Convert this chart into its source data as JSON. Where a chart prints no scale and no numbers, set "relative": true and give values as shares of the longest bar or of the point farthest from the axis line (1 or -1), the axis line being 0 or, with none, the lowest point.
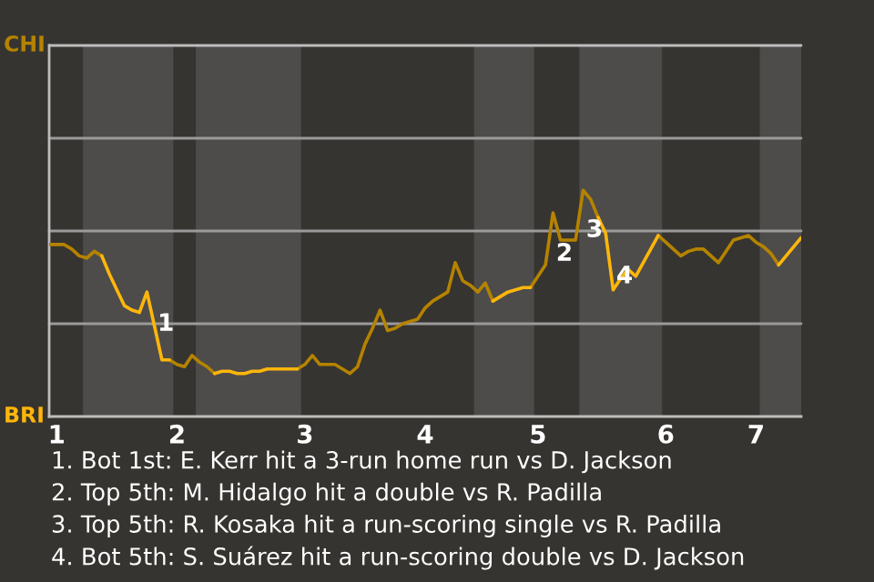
{
  "chart_data": {
    "type": "line",
    "relative": true,
    "categories": [
      null,
      "1",
      null,
      null,
      null,
      null,
      null,
      null,
      null,
      null,
      null,
      null,
      null,
      null,
      null,
      null,
      null,
      "2",
      null,
      null,
      null,
      null,
      null,
      null,
      null,
      null,
      null,
      null,
      null,
      null,
      null,
      null,
      null,
      null,
      "3",
      null,
      null,
      null,
      null,
      null,
      null,
      null,
      null,
      null,
      null,
      null,
      null,
      null,
      null,
      null,
      "4",
      null,
      null,
      null,
      null,
      null,
      null,
      null,
      null,
      null,
      null,
      null,
      null,
      null,
      null,
      "5",
      null,
      null,
      null,
      null,
      null,
      null,
      null,
      null,
      null,
      null,
      null,
      null,
      null,
      null,
      null,
      null,
      "6",
      null,
      null,
      null,
      null,
      null,
      null,
      null,
      null,
      null,
      null,
      null,
      "7",
      null,
      null,
      null,
      null,
      null,
      null
    ],
    "series": [
      {
        "color": "#b58300",
        "values": [
          0.76,
          0.76,
          0.76,
          0.74,
          0.71,
          0.7,
          0.73,
          0.71,
          null,
          null,
          null,
          null,
          null,
          null,
          null,
          null,
          0.25,
          0.23,
          0.22,
          0.27,
          0.24,
          0.22,
          0.19,
          null,
          null,
          null,
          null,
          null,
          null,
          null,
          null,
          null,
          null,
          0.21,
          0.23,
          0.27,
          0.23,
          0.23,
          0.23,
          0.21,
          0.19,
          0.22,
          0.32,
          0.39,
          0.47,
          0.38,
          0.39,
          0.41,
          0.42,
          0.43,
          0.48,
          0.51,
          0.53,
          0.55,
          0.68,
          0.6,
          0.58,
          0.55,
          0.59,
          0.51,
          null,
          null,
          null,
          null,
          0.57,
          0.62,
          0.67,
          0.9,
          0.78,
          0.78,
          0.78,
          1,
          0.96,
          0.88,
          null,
          null,
          null,
          null,
          null,
          null,
          null,
          0.8,
          0.77,
          0.74,
          0.71,
          0.73,
          0.74,
          0.74,
          0.71,
          0.68,
          0.73,
          0.78,
          0.79,
          0.8,
          0.77,
          0.75,
          0.72,
          0.67,
          null,
          null,
          null
        ]
      },
      {
        "color": "#ffb60a",
        "values": [
          null,
          null,
          null,
          null,
          null,
          null,
          null,
          0.71,
          0.63,
          0.56,
          0.49,
          0.47,
          0.46,
          0.55,
          0.4,
          0.25,
          0.25,
          null,
          null,
          null,
          null,
          null,
          0.19,
          0.2,
          0.2,
          0.19,
          0.19,
          0.2,
          0.2,
          0.21,
          0.21,
          0.21,
          0.21,
          0.21,
          null,
          null,
          null,
          null,
          null,
          null,
          null,
          null,
          null,
          null,
          null,
          null,
          null,
          null,
          null,
          null,
          null,
          null,
          null,
          null,
          null,
          null,
          null,
          null,
          null,
          0.51,
          0.53,
          0.55,
          0.56,
          0.57,
          0.57,
          null,
          null,
          null,
          null,
          null,
          null,
          null,
          null,
          0.88,
          0.81,
          0.56,
          0.61,
          0.65,
          0.62,
          0.68,
          0.74,
          0.8,
          null,
          null,
          null,
          null,
          null,
          null,
          null,
          null,
          null,
          null,
          null,
          null,
          null,
          null,
          null,
          0.67,
          0.71,
          0.75,
          0.79
        ]
      }
    ],
    "ref_lines": [
      {
        "axis": "y",
        "value": 0.41,
        "color": "#9a9a9a"
      },
      {
        "axis": "y",
        "value": 0.82,
        "color": "#9a9a9a"
      },
      {
        "axis": "y",
        "value": 1.23,
        "color": "#9a9a9a"
      },
      {
        "axis": "y",
        "value": 1.64,
        "color": "#bdbdbd"
      }
    ],
    "annotations": [
      "CHI",
      "BRI",
      "1",
      "2",
      "3",
      "4",
      "1. Bot 1st: E. Kerr hit a 3-run home run vs D. Jackson",
      "2. Top 5th: M. Hidalgo hit a double vs R. Padilla",
      "3. Top 5th: R. Kosaka hit a run-scoring single vs R. Padilla",
      "4. Bot 5th: S. Suárez hit a run-scoring double vs D. Jackson"
    ]
  }
}
